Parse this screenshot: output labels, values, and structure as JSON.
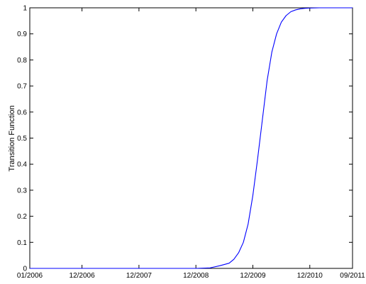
{
  "chart_data": {
    "type": "line",
    "title": "",
    "xlabel": "",
    "ylabel": "Transition Function",
    "x_tick_labels": [
      "01/2006",
      "12/2006",
      "12/2007",
      "12/2008",
      "12/2009",
      "12/2010",
      "09/2011"
    ],
    "x_ticks": [
      "2006-01",
      "2006-12",
      "2007-12",
      "2008-12",
      "2009-12",
      "2010-12",
      "2011-09"
    ],
    "xlim": [
      "2006-01",
      "2011-09"
    ],
    "y_ticks": [
      0,
      0.1,
      0.2,
      0.3,
      0.4,
      0.5,
      0.6,
      0.7,
      0.8,
      0.9,
      1
    ],
    "y_tick_labels": [
      "0",
      "0.1",
      "0.2",
      "0.3",
      "0.4",
      "0.5",
      "0.6",
      "0.7",
      "0.8",
      "0.9",
      "1"
    ],
    "ylim": [
      0,
      1
    ],
    "grid": false,
    "legend": "none",
    "line_color": "#0000ff",
    "series": [
      {
        "x": [
          "2006-01",
          "2008-12",
          "2009-03",
          "2009-05",
          "2009-07",
          "2009-08",
          "2009-09",
          "2009-10",
          "2009-11",
          "2009-12",
          "2010-01",
          "2010-02",
          "2010-03",
          "2010-04",
          "2010-05",
          "2010-06",
          "2010-07",
          "2010-08",
          "2010-09",
          "2010-10",
          "2010-11",
          "2010-12",
          "2011-02",
          "2011-05",
          "2011-09"
        ],
        "values": [
          0,
          0,
          0.002,
          0.01,
          0.02,
          0.035,
          0.06,
          0.1,
          0.17,
          0.28,
          0.42,
          0.57,
          0.72,
          0.83,
          0.9,
          0.945,
          0.97,
          0.985,
          0.992,
          0.996,
          0.998,
          0.999,
          1,
          1,
          1
        ]
      }
    ]
  }
}
